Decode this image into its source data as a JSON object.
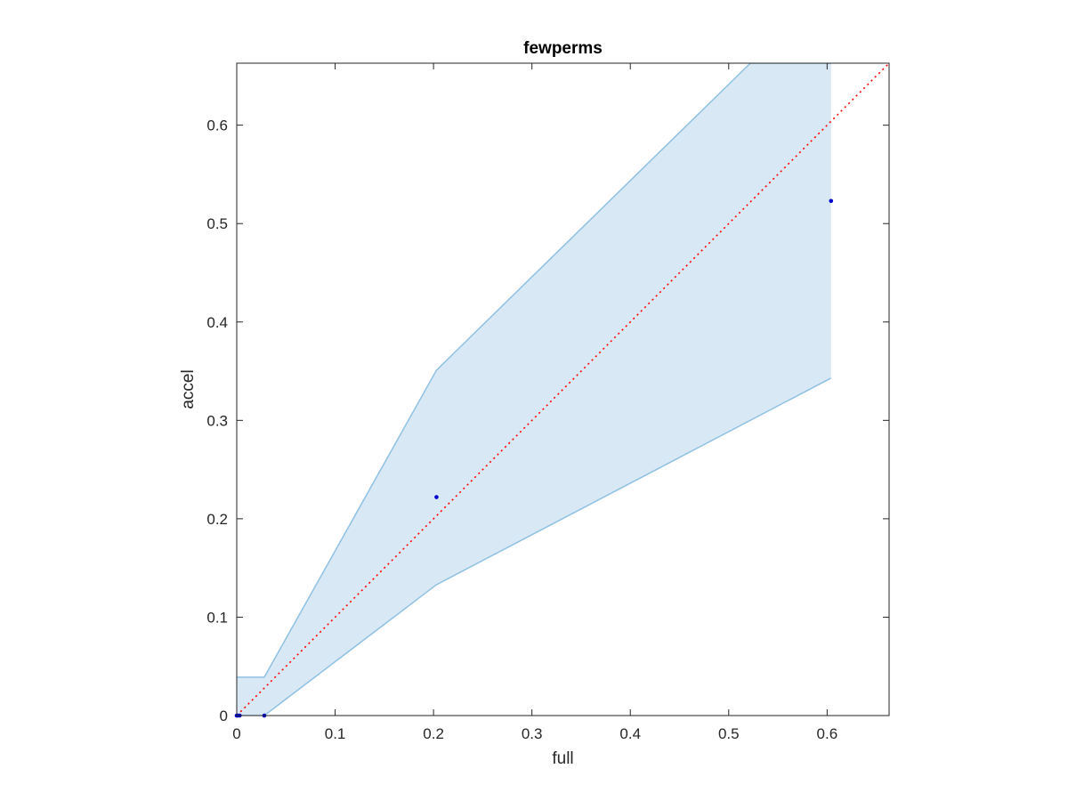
{
  "chart_data": {
    "type": "scatter",
    "title": "fewperms",
    "xlabel": "full",
    "ylabel": "accel",
    "xlim": [
      0,
      0.663
    ],
    "ylim": [
      0,
      0.663
    ],
    "xticks": [
      0,
      0.1,
      0.2,
      0.3,
      0.4,
      0.5,
      0.6
    ],
    "yticks": [
      0,
      0.1,
      0.2,
      0.3,
      0.4,
      0.5,
      0.6
    ],
    "xtick_labels": [
      "0",
      "0.1",
      "0.2",
      "0.3",
      "0.4",
      "0.5",
      "0.6"
    ],
    "ytick_labels": [
      "0",
      "0.1",
      "0.2",
      "0.3",
      "0.4",
      "0.5",
      "0.6"
    ],
    "grid": false,
    "band": {
      "color": "#d9e8f5",
      "edge_color": "#8fc1e3",
      "upper": [
        [
          0,
          0.039
        ],
        [
          0.028,
          0.039
        ],
        [
          0.203,
          0.351
        ],
        [
          0.522,
          0.663
        ],
        [
          0.604,
          0.663
        ]
      ],
      "lower": [
        [
          0,
          0
        ],
        [
          0.028,
          0
        ],
        [
          0.203,
          0.133
        ],
        [
          0.604,
          0.343
        ]
      ]
    },
    "points": {
      "color": "#0000cc",
      "x": [
        0.0,
        0.001,
        0.003,
        0.028,
        0.203,
        0.604
      ],
      "y": [
        0.0,
        0.0,
        0.0,
        0.0,
        0.222,
        0.523
      ]
    },
    "reference_line": {
      "color": "#ff0000",
      "style": "dotted",
      "from": [
        0,
        0
      ],
      "to": [
        0.663,
        0.663
      ]
    }
  }
}
